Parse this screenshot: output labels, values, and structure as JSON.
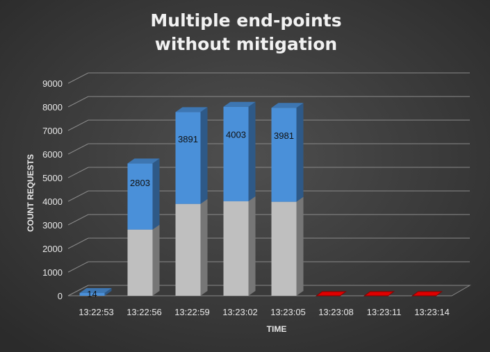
{
  "chart_data": {
    "type": "bar",
    "stacked": true,
    "three_d": true,
    "title": [
      "Multiple end-points",
      "without mitigation"
    ],
    "xlabel": "TIME",
    "ylabel": "COUNT REQUESTS",
    "ylim": [
      0,
      9000
    ],
    "yticks": [
      0,
      1000,
      2000,
      3000,
      4000,
      5000,
      6000,
      7000,
      8000,
      9000
    ],
    "categories": [
      "13:22:53",
      "13:22:56",
      "13:22:59",
      "13:23:02",
      "13:23:05",
      "13:23:08",
      "13:23:11",
      "13:23:14"
    ],
    "series": [
      {
        "values": [
          0,
          2803,
          3891,
          4003,
          3981,
          0,
          0,
          0
        ],
        "color": "#bfbfbf",
        "show_labels": false
      },
      {
        "values": [
          14,
          2803,
          3891,
          4003,
          3981,
          0,
          0,
          0
        ],
        "color": "#4a90d9",
        "show_labels": true
      },
      {
        "values": [
          0,
          0,
          0,
          0,
          0,
          0,
          0,
          0
        ],
        "color": "#e00000",
        "show_labels": false
      }
    ],
    "grid": true,
    "legend": "none",
    "colors": {
      "background": "#454545",
      "grid": "#8a8a8a",
      "text": "#e8e8e8"
    }
  }
}
